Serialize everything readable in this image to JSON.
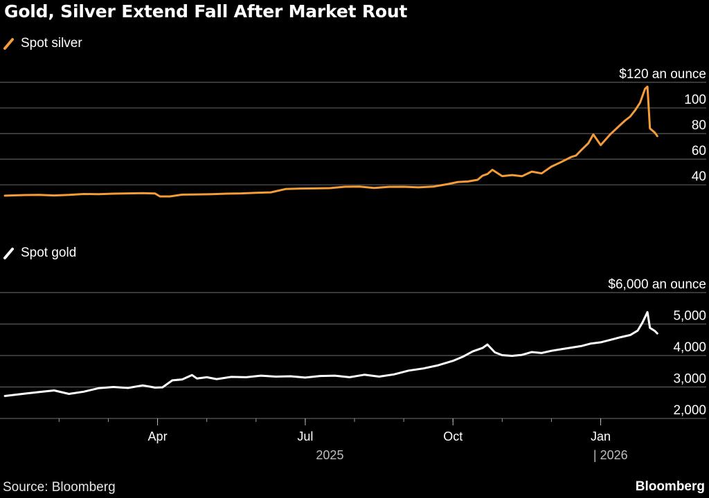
{
  "title": "Gold, Silver Extend Fall After Market Rout",
  "source": "Source: Bloomberg",
  "brand": "Bloomberg",
  "colors": {
    "silver": "#f39c38",
    "gold": "#ffffff",
    "grid": "#5a5a5a",
    "background": "#000000"
  },
  "x_axis": {
    "ticks": [
      {
        "label": "Apr",
        "x": 3
      },
      {
        "label": "Jul",
        "x": 6
      },
      {
        "label": "Oct",
        "x": 9
      },
      {
        "label": "Jan",
        "x": 12
      }
    ],
    "minor_ticks": [
      1,
      2,
      3,
      4,
      5,
      6,
      7,
      8,
      9,
      10,
      11,
      12
    ],
    "year_labels": [
      {
        "label": "2025",
        "x": 6.5
      },
      {
        "label": "| 2026",
        "x": 12.2
      }
    ]
  },
  "chart_data": [
    {
      "type": "line",
      "title": "Spot silver",
      "unit": "$120 an ounce",
      "series": [
        {
          "name": "Spot silver"
        }
      ],
      "yticks": [
        40,
        60,
        80,
        100,
        120
      ],
      "ytick_labels": [
        "40",
        "60",
        "80",
        "100",
        "$120 an ounce"
      ],
      "ylim": [
        32,
        120
      ],
      "xlim": [
        -0.2,
        13.3
      ],
      "x": [
        -0.1,
        0.3,
        0.6,
        0.9,
        1.2,
        1.5,
        1.8,
        2.1,
        2.4,
        2.7,
        2.95,
        3.05,
        3.25,
        3.5,
        3.8,
        4.1,
        4.4,
        4.7,
        5.0,
        5.3,
        5.6,
        5.9,
        6.2,
        6.5,
        6.8,
        7.1,
        7.4,
        7.7,
        8.0,
        8.3,
        8.6,
        8.9,
        9.1,
        9.3,
        9.5,
        9.6,
        9.7,
        9.8,
        10.0,
        10.2,
        10.4,
        10.6,
        10.8,
        11.0,
        11.2,
        11.4,
        11.5,
        11.6,
        11.75,
        11.85,
        12.0,
        12.2,
        12.4,
        12.5,
        12.6,
        12.7,
        12.8,
        12.9,
        12.95,
        13.0,
        13.1,
        13.15
      ],
      "y": [
        31.5,
        32.0,
        32.1,
        31.7,
        32.1,
        32.8,
        32.7,
        33.1,
        33.3,
        33.5,
        33.2,
        30.9,
        30.9,
        32.3,
        32.5,
        32.7,
        33.1,
        33.3,
        33.8,
        34.1,
        36.7,
        37.1,
        37.2,
        37.4,
        38.5,
        38.6,
        37.5,
        38.4,
        38.5,
        38.0,
        38.6,
        40.6,
        42.2,
        42.6,
        43.9,
        47.1,
        48.4,
        51.7,
        46.8,
        47.6,
        46.7,
        50.3,
        48.9,
        54.2,
        57.8,
        61.7,
        62.9,
        66.9,
        72.5,
        79.3,
        71.0,
        79.6,
        86.8,
        90.3,
        93.3,
        98.2,
        104.0,
        114.9,
        116.6,
        84.0,
        80.7,
        78.0
      ]
    },
    {
      "type": "line",
      "title": "Spot gold",
      "unit": "$6,000 an ounce",
      "series": [
        {
          "name": "Spot gold"
        }
      ],
      "yticks": [
        2000,
        3000,
        4000,
        5000,
        6000
      ],
      "ytick_labels": [
        "2,000",
        "3,000",
        "4,000",
        "5,000",
        "$6,000 an ounce"
      ],
      "ylim": [
        2000,
        6000
      ],
      "xlim": [
        -0.2,
        13.3
      ],
      "x": [
        -0.1,
        0.3,
        0.6,
        0.9,
        1.2,
        1.5,
        1.8,
        2.1,
        2.4,
        2.7,
        2.95,
        3.1,
        3.3,
        3.5,
        3.7,
        3.8,
        4.0,
        4.2,
        4.5,
        4.8,
        5.1,
        5.4,
        5.7,
        6.0,
        6.3,
        6.6,
        6.9,
        7.2,
        7.5,
        7.8,
        8.1,
        8.4,
        8.7,
        9.0,
        9.2,
        9.4,
        9.6,
        9.7,
        9.85,
        10.0,
        10.2,
        10.4,
        10.6,
        10.8,
        11.0,
        11.2,
        11.4,
        11.6,
        11.8,
        12.0,
        12.2,
        12.4,
        12.6,
        12.75,
        12.85,
        12.95,
        13.0,
        13.1,
        13.15
      ],
      "y": [
        2715,
        2790,
        2840,
        2890,
        2780,
        2850,
        2960,
        3000,
        2970,
        3050,
        2980,
        2990,
        3210,
        3240,
        3380,
        3270,
        3310,
        3250,
        3320,
        3310,
        3360,
        3330,
        3340,
        3300,
        3350,
        3360,
        3310,
        3390,
        3330,
        3400,
        3520,
        3590,
        3690,
        3830,
        3960,
        4130,
        4240,
        4350,
        4100,
        4010,
        3990,
        4020,
        4110,
        4080,
        4150,
        4200,
        4250,
        4300,
        4380,
        4420,
        4500,
        4580,
        4650,
        4790,
        5050,
        5380,
        4880,
        4780,
        4700
      ]
    }
  ]
}
